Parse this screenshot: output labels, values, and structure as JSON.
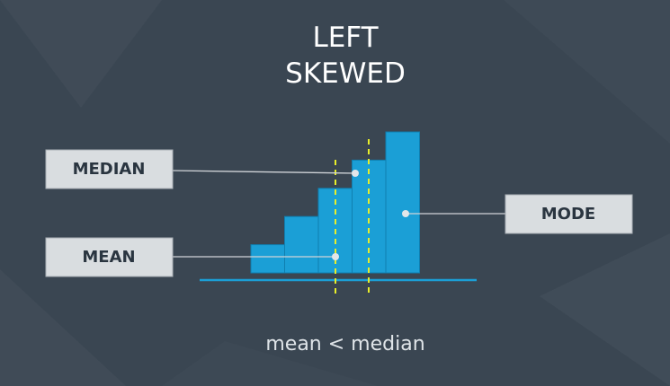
{
  "title": {
    "line1": "LEFT",
    "line2": "SKEWED"
  },
  "caption": "mean < median",
  "labels": {
    "median": "MEDIAN",
    "mean": "MEAN",
    "mode": "MODE"
  },
  "colors": {
    "background": "#3a4652",
    "bars": "#1b9fd6",
    "guide_lines": "#e8ee2a",
    "label_box": "#d9dde0"
  },
  "chart_data": {
    "type": "bar",
    "description_free": true,
    "values": [
      1,
      2,
      3,
      4,
      5
    ],
    "markers": [
      "mean",
      "median",
      "mode"
    ]
  }
}
